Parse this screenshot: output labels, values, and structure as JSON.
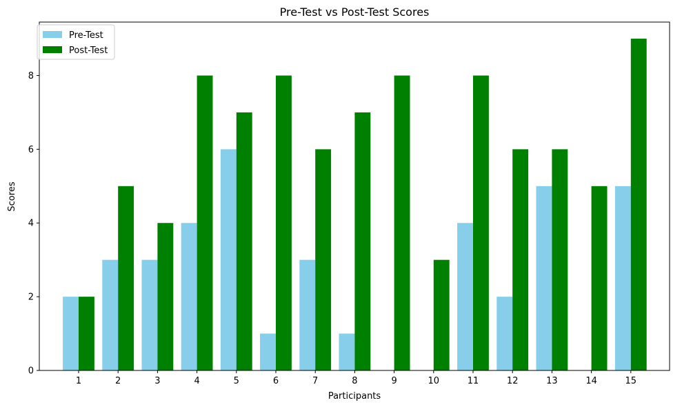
{
  "chart_data": {
    "type": "bar",
    "title": "Pre-Test vs Post-Test Scores",
    "xlabel": "Participants",
    "ylabel": "Scores",
    "categories": [
      "1",
      "2",
      "3",
      "4",
      "5",
      "6",
      "7",
      "8",
      "9",
      "10",
      "11",
      "12",
      "13",
      "14",
      "15"
    ],
    "series": [
      {
        "name": "Pre-Test",
        "color": "#87ceeb",
        "values": [
          2,
          3,
          3,
          4,
          6,
          1,
          3,
          1,
          0,
          0,
          4,
          2,
          5,
          0,
          5
        ]
      },
      {
        "name": "Post-Test",
        "color": "#008000",
        "values": [
          2,
          5,
          4,
          8,
          7,
          8,
          6,
          7,
          8,
          3,
          8,
          6,
          6,
          5,
          9
        ]
      }
    ],
    "ylim": [
      0,
      9.45
    ],
    "yticks": [
      0,
      2,
      4,
      6,
      8
    ],
    "grid": false,
    "legend_position": "top-left"
  }
}
